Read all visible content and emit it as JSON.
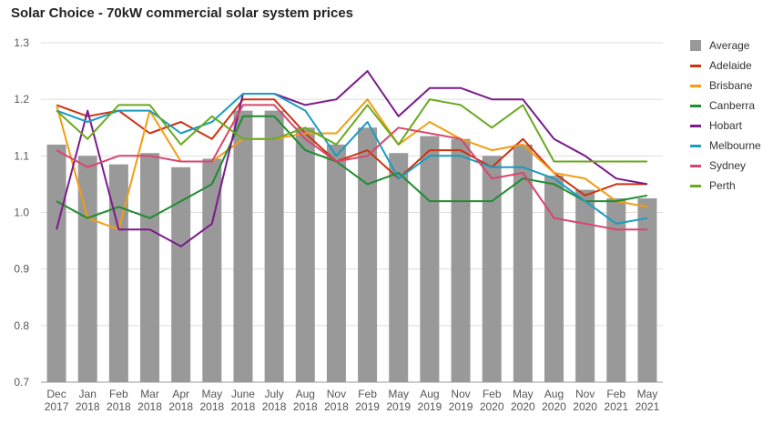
{
  "chart_data": {
    "type": "bar",
    "title": "Solar Choice - 70kW commercial solar system prices",
    "xlabel": "",
    "ylabel": "",
    "ylim": [
      0.7,
      1.3
    ],
    "yticks": [
      "1.3",
      "1.2",
      "1.1",
      "1.0",
      "0.9",
      "0.8",
      "0.7"
    ],
    "grid": true,
    "legend_position": "right",
    "categories": [
      [
        "Dec",
        "2017"
      ],
      [
        "Jan",
        "2018"
      ],
      [
        "Feb",
        "2018"
      ],
      [
        "Mar",
        "2018"
      ],
      [
        "Apr",
        "2018"
      ],
      [
        "May",
        "2018"
      ],
      [
        "June",
        "2018"
      ],
      [
        "July",
        "2018"
      ],
      [
        "Aug",
        "2018"
      ],
      [
        "Nov",
        "2018"
      ],
      [
        "Feb",
        "2019"
      ],
      [
        "May",
        "2019"
      ],
      [
        "Aug",
        "2019"
      ],
      [
        "Nov",
        "2019"
      ],
      [
        "Feb",
        "2020"
      ],
      [
        "May",
        "2020"
      ],
      [
        "Aug",
        "2020"
      ],
      [
        "Nov",
        "2020"
      ],
      [
        "Feb",
        "2021"
      ],
      [
        "May",
        "2021"
      ]
    ],
    "bar_series": {
      "name": "Average",
      "color": "#999999",
      "values": [
        1.12,
        1.1,
        1.085,
        1.105,
        1.08,
        1.095,
        1.18,
        1.18,
        1.15,
        1.12,
        1.15,
        1.105,
        1.135,
        1.13,
        1.1,
        1.12,
        1.065,
        1.04,
        1.025,
        1.025
      ]
    },
    "line_series": [
      {
        "name": "Adelaide",
        "color": "#cc3311",
        "values": [
          1.19,
          1.17,
          1.18,
          1.14,
          1.16,
          1.13,
          1.2,
          1.2,
          1.14,
          1.09,
          1.11,
          1.06,
          1.11,
          1.11,
          1.08,
          1.13,
          1.07,
          1.03,
          1.05,
          1.05
        ]
      },
      {
        "name": "Brisbane",
        "color": "#f39c12",
        "values": [
          1.19,
          0.99,
          0.97,
          1.18,
          1.09,
          1.09,
          1.13,
          1.13,
          1.14,
          1.14,
          1.2,
          1.12,
          1.16,
          1.13,
          1.11,
          1.12,
          1.07,
          1.06,
          1.02,
          1.01
        ]
      },
      {
        "name": "Canberra",
        "color": "#1e8c2f",
        "values": [
          1.02,
          0.99,
          1.01,
          0.99,
          1.02,
          1.05,
          1.17,
          1.17,
          1.11,
          1.09,
          1.05,
          1.07,
          1.02,
          1.02,
          1.02,
          1.06,
          1.05,
          1.02,
          1.02,
          1.03
        ]
      },
      {
        "name": "Hobart",
        "color": "#7b1a8c",
        "values": [
          0.97,
          1.18,
          0.97,
          0.97,
          0.94,
          0.98,
          1.21,
          1.21,
          1.19,
          1.2,
          1.25,
          1.17,
          1.22,
          1.22,
          1.2,
          1.2,
          1.13,
          1.1,
          1.06,
          1.05
        ]
      },
      {
        "name": "Melbourne",
        "color": "#1a9bc0",
        "values": [
          1.18,
          1.16,
          1.18,
          1.18,
          1.14,
          1.16,
          1.21,
          1.21,
          1.18,
          1.1,
          1.16,
          1.06,
          1.1,
          1.1,
          1.08,
          1.08,
          1.06,
          1.02,
          0.98,
          0.99
        ]
      },
      {
        "name": "Sydney",
        "color": "#d9456e",
        "values": [
          1.11,
          1.08,
          1.1,
          1.1,
          1.09,
          1.09,
          1.19,
          1.19,
          1.13,
          1.09,
          1.1,
          1.15,
          1.14,
          1.13,
          1.06,
          1.07,
          0.99,
          0.98,
          0.97,
          0.97
        ]
      },
      {
        "name": "Perth",
        "color": "#6aaa1e",
        "values": [
          1.18,
          1.13,
          1.19,
          1.19,
          1.12,
          1.17,
          1.13,
          1.13,
          1.15,
          1.12,
          1.19,
          1.12,
          1.2,
          1.19,
          1.15,
          1.19,
          1.09,
          1.09,
          1.09,
          1.09
        ]
      }
    ]
  }
}
